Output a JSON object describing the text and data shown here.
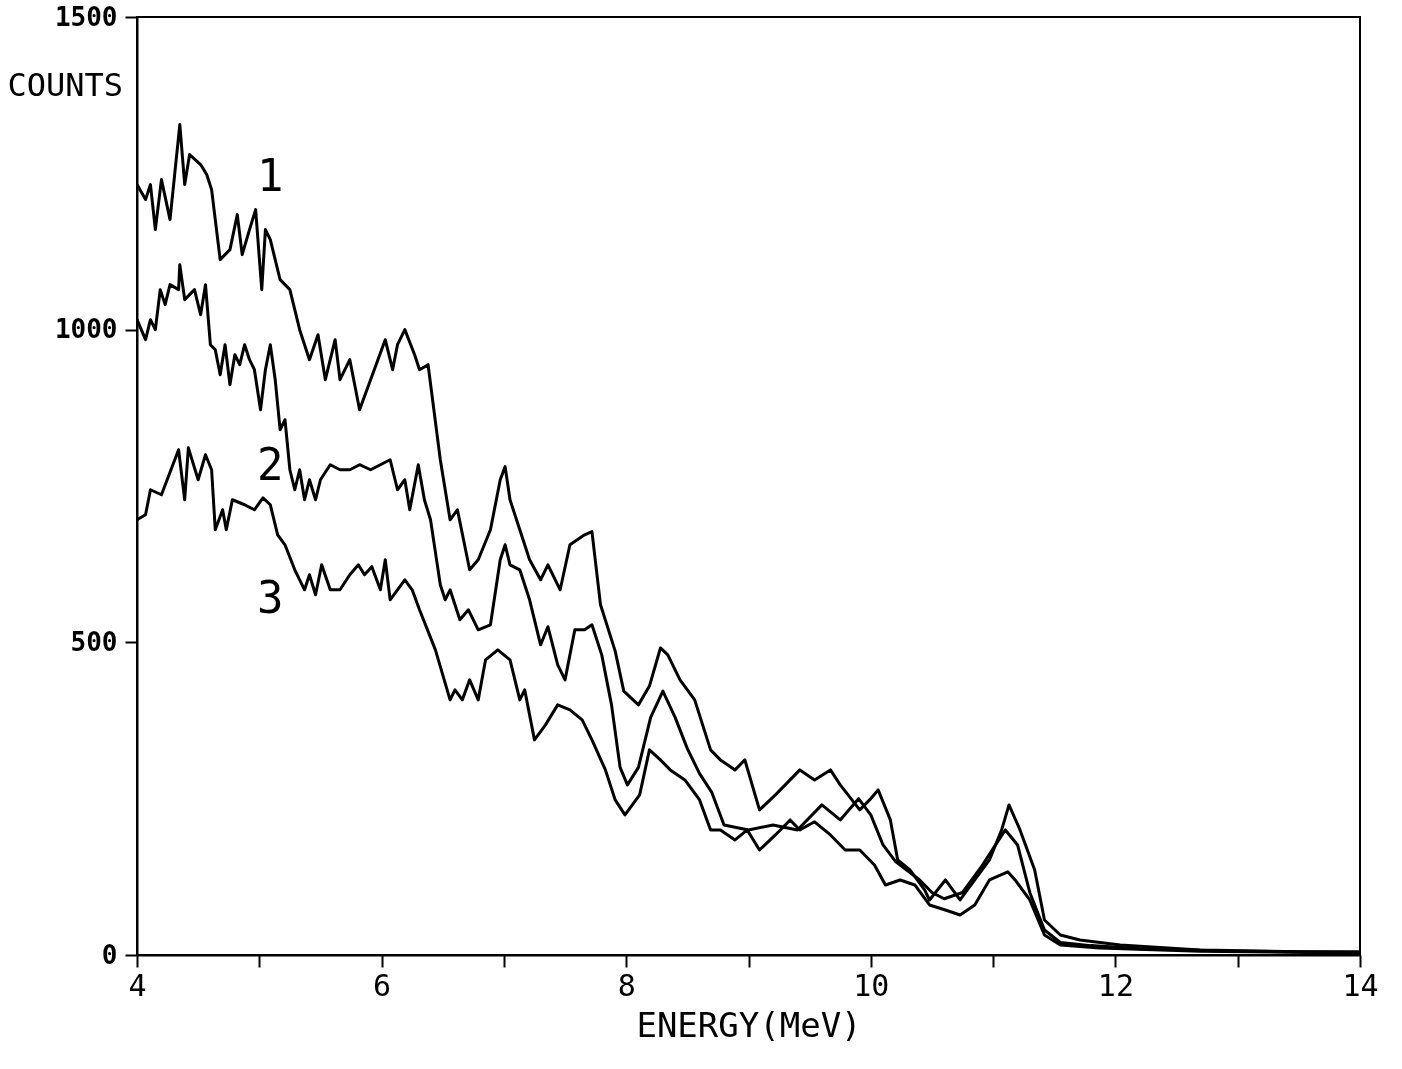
{
  "chart_data": {
    "type": "line",
    "xlabel": "ENERGY(MeV)",
    "ylabel": "COUNTS",
    "xlim": [
      4,
      14
    ],
    "ylim": [
      0,
      1500
    ],
    "xticks": [
      4,
      {
        "value": 5,
        "label": null
      },
      6,
      {
        "value": 7,
        "label": null
      },
      8,
      {
        "value": 9,
        "label": null
      },
      10,
      {
        "value": 11,
        "label": null
      },
      12,
      {
        "value": 13,
        "label": null
      },
      14
    ],
    "yticks": [
      0,
      500,
      1000,
      1500
    ],
    "series": [
      {
        "name": "1",
        "color": "#000000",
        "x": [
          4.0,
          4.07,
          4.11,
          4.15,
          4.2,
          4.27,
          4.35,
          4.39,
          4.43,
          4.52,
          4.57,
          4.61,
          4.68,
          4.76,
          4.82,
          4.86,
          4.92,
          4.97,
          5.02,
          5.05,
          5.09,
          5.17,
          5.25,
          5.33,
          5.41,
          5.48,
          5.54,
          5.62,
          5.66,
          5.74,
          5.82,
          5.91,
          6.03,
          6.09,
          6.13,
          6.19,
          6.27,
          6.31,
          6.38,
          6.48,
          6.56,
          6.62,
          6.72,
          6.79,
          6.89,
          6.97,
          7.01,
          7.05,
          7.13,
          7.21,
          7.3,
          7.36,
          7.46,
          7.54,
          7.66,
          7.72,
          7.79,
          7.91,
          7.98,
          8.1,
          8.19,
          8.28,
          8.34,
          8.44,
          8.56,
          8.69,
          8.77,
          8.89,
          8.97,
          9.09,
          9.22,
          9.42,
          9.54,
          9.67,
          9.75,
          9.91,
          9.99,
          10.06,
          10.16,
          10.22,
          10.32,
          10.44,
          10.48,
          10.61,
          10.73,
          10.85,
          10.97,
          11.07,
          11.13,
          11.22,
          11.34,
          11.42,
          11.55,
          11.71,
          12.04,
          12.69,
          13.51,
          14.0
        ],
        "values": [
          1232,
          1208,
          1232,
          1160,
          1240,
          1176,
          1328,
          1232,
          1280,
          1264,
          1248,
          1224,
          1112,
          1128,
          1184,
          1120,
          1160,
          1192,
          1064,
          1160,
          1144,
          1080,
          1064,
          1000,
          952,
          992,
          920,
          984,
          920,
          952,
          872,
          920,
          984,
          936,
          976,
          1000,
          960,
          936,
          944,
          792,
          696,
          712,
          616,
          632,
          680,
          760,
          781,
          728,
          680,
          632,
          600,
          624,
          584,
          656,
          672,
          677,
          560,
          486,
          422,
          400,
          430,
          491,
          480,
          440,
          408,
          328,
          312,
          296,
          312,
          232,
          256,
          296,
          280,
          296,
          272,
          232,
          248,
          264,
          216,
          152,
          136,
          104,
          88,
          120,
          88,
          120,
          152,
          200,
          240,
          200,
          136,
          56,
          32,
          24,
          16,
          8,
          5,
          5
        ]
      },
      {
        "name": "2",
        "color": "#000000",
        "x": [
          4.0,
          4.07,
          4.11,
          4.15,
          4.19,
          4.23,
          4.27,
          4.34,
          4.35,
          4.39,
          4.47,
          4.52,
          4.56,
          4.6,
          4.64,
          4.68,
          4.72,
          4.76,
          4.8,
          4.84,
          4.88,
          4.92,
          4.96,
          5.01,
          5.05,
          5.09,
          5.13,
          5.17,
          5.21,
          5.25,
          5.29,
          5.33,
          5.37,
          5.41,
          5.46,
          5.5,
          5.58,
          5.66,
          5.74,
          5.82,
          5.91,
          5.99,
          6.07,
          6.13,
          6.19,
          6.23,
          6.3,
          6.35,
          6.4,
          6.48,
          6.52,
          6.56,
          6.64,
          6.71,
          6.79,
          6.89,
          6.97,
          7.01,
          7.05,
          7.13,
          7.21,
          7.3,
          7.36,
          7.44,
          7.5,
          7.58,
          7.66,
          7.72,
          7.8,
          7.88,
          7.95,
          8.01,
          8.1,
          8.2,
          8.3,
          8.4,
          8.5,
          8.6,
          8.7,
          8.8,
          9.0,
          9.2,
          9.4,
          9.6,
          9.75,
          9.9,
          10.0,
          10.1,
          10.2,
          10.4,
          10.5,
          10.6,
          10.75,
          10.9,
          11.0,
          11.1,
          11.2,
          11.3,
          11.42,
          11.55,
          11.8,
          12.2,
          13.0,
          14.0
        ],
        "values": [
          1016,
          984,
          1016,
          1000,
          1064,
          1040,
          1072,
          1064,
          1104,
          1048,
          1064,
          1024,
          1072,
          976,
          968,
          928,
          976,
          912,
          960,
          944,
          976,
          952,
          936,
          872,
          936,
          976,
          920,
          840,
          856,
          776,
          744,
          776,
          728,
          760,
          728,
          760,
          784,
          776,
          776,
          784,
          776,
          784,
          792,
          744,
          760,
          712,
          784,
          728,
          696,
          592,
          568,
          584,
          536,
          552,
          520,
          528,
          632,
          656,
          624,
          616,
          568,
          496,
          525,
          464,
          440,
          520,
          520,
          528,
          480,
          400,
          300,
          272,
          300,
          380,
          422,
          380,
          330,
          290,
          260,
          208,
          200,
          208,
          200,
          240,
          216,
          250,
          224,
          176,
          150,
          120,
          100,
          90,
          100,
          140,
          170,
          200,
          176,
          100,
          40,
          20,
          15,
          10,
          6,
          4
        ]
      },
      {
        "name": "3",
        "color": "#000000",
        "x": [
          4.0,
          4.07,
          4.11,
          4.2,
          4.34,
          4.39,
          4.42,
          4.5,
          4.56,
          4.61,
          4.64,
          4.7,
          4.73,
          4.78,
          4.88,
          4.96,
          5.03,
          5.09,
          5.15,
          5.21,
          5.29,
          5.37,
          5.41,
          5.46,
          5.51,
          5.58,
          5.66,
          5.74,
          5.81,
          5.86,
          5.92,
          5.99,
          6.03,
          6.07,
          6.19,
          6.25,
          6.31,
          6.44,
          6.56,
          6.6,
          6.66,
          6.72,
          6.79,
          6.85,
          6.95,
          7.05,
          7.13,
          7.17,
          7.25,
          7.34,
          7.44,
          7.54,
          7.64,
          7.72,
          7.83,
          7.91,
          7.99,
          8.11,
          8.19,
          8.28,
          8.36,
          8.48,
          8.6,
          8.69,
          8.77,
          8.89,
          8.99,
          9.09,
          9.22,
          9.34,
          9.42,
          9.54,
          9.67,
          9.79,
          9.91,
          10.03,
          10.12,
          10.24,
          10.36,
          10.48,
          10.61,
          10.73,
          10.85,
          10.97,
          11.12,
          11.18,
          11.3,
          11.42,
          11.55,
          11.87,
          12.69,
          14.0
        ],
        "values": [
          696,
          704,
          744,
          736,
          808,
          728,
          811,
          760,
          800,
          776,
          680,
          712,
          680,
          728,
          720,
          712,
          731,
          720,
          672,
          656,
          616,
          584,
          608,
          576,
          624,
          584,
          584,
          608,
          624,
          608,
          621,
          584,
          632,
          568,
          600,
          584,
          552,
          488,
          408,
          424,
          408,
          440,
          408,
          472,
          488,
          472,
          408,
          424,
          344,
          368,
          400,
          392,
          376,
          344,
          296,
          248,
          224,
          256,
          328,
          312,
          296,
          280,
          248,
          200,
          200,
          184,
          200,
          168,
          192,
          216,
          200,
          213,
          192,
          168,
          168,
          144,
          112,
          120,
          112,
          80,
          72,
          64,
          80,
          120,
          133,
          120,
          88,
          32,
          16,
          11,
          6,
          3
        ]
      }
    ]
  }
}
